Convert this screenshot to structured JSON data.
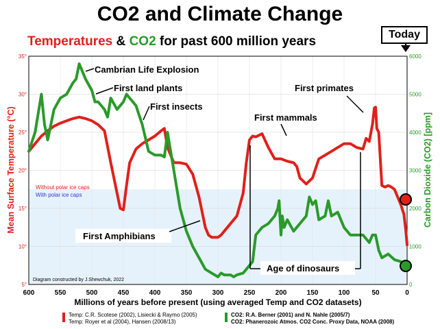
{
  "title": "CO2 and Climate Change",
  "subtitle": {
    "temp": "Temperatures",
    "amp": "&",
    "co2": "CO2",
    "rest": "for past 600 million years"
  },
  "today_label": "Today",
  "colors": {
    "temp": "#e0201b",
    "co2": "#2a9a2a",
    "ice": "#e6f2fb",
    "ice_text": "#3333cc"
  },
  "chart_data": {
    "type": "line",
    "xlabel": "Millions of years before present (using averaged Temp and CO2 datasets)",
    "ylabel_left": "Mean Surface Temperature (°C)",
    "ylabel_right": "Carbon Dioxide (CO2) [ppm]",
    "xlim": [
      600,
      0
    ],
    "ylim_left": [
      5,
      35
    ],
    "ylim_right": [
      0,
      6000
    ],
    "x_ticks": [
      600,
      550,
      500,
      450,
      400,
      350,
      300,
      250,
      200,
      150,
      100,
      50,
      0
    ],
    "y_ticks_left": [
      5,
      10,
      15,
      20,
      25,
      30,
      35
    ],
    "y_ticks_right": [
      0,
      1000,
      2000,
      3000,
      4000,
      5000,
      6000
    ],
    "ice_band_top": 17.5,
    "series": [
      {
        "name": "Temp",
        "axis": "left",
        "color": "#e0201b",
        "x": [
          600,
          590,
          580,
          570,
          560,
          550,
          540,
          530,
          520,
          510,
          500,
          490,
          480,
          470,
          460,
          455,
          450,
          445,
          440,
          430,
          420,
          410,
          400,
          390,
          385,
          380,
          370,
          360,
          350,
          340,
          330,
          320,
          315,
          310,
          300,
          295,
          290,
          280,
          270,
          260,
          255,
          250,
          245,
          240,
          230,
          220,
          210,
          200,
          190,
          180,
          175,
          170,
          160,
          150,
          140,
          130,
          120,
          110,
          100,
          90,
          80,
          70,
          65,
          60,
          55,
          52,
          50,
          48,
          45,
          40,
          35,
          30,
          25,
          20,
          15,
          10,
          5,
          2,
          0
        ],
        "y": [
          22.5,
          23.5,
          24.5,
          25.2,
          25.8,
          26.2,
          26.5,
          26.8,
          27,
          26.8,
          26.5,
          26,
          25.2,
          21,
          17,
          15,
          14.8,
          18,
          21,
          22.8,
          23.5,
          24,
          24.5,
          25.2,
          25.5,
          23,
          21,
          21,
          20.8,
          19.5,
          16.5,
          12.5,
          11.5,
          11.2,
          11.2,
          11.5,
          12,
          13,
          14,
          17,
          21,
          24,
          24.5,
          24.4,
          24.8,
          23,
          21.5,
          21.5,
          21.2,
          21,
          20.5,
          19,
          18.2,
          19,
          21.5,
          22,
          22.5,
          23,
          23.5,
          23.5,
          23,
          22.8,
          24.2,
          23.8,
          26,
          28.2,
          28.3,
          25.5,
          25,
          18,
          17.8,
          18,
          17.8,
          17.5,
          16.5,
          15.5,
          14.2,
          12,
          10.2
        ]
      },
      {
        "name": "CO2",
        "axis": "right",
        "color": "#2a9a2a",
        "x": [
          600,
          590,
          585,
          580,
          575,
          570,
          560,
          550,
          540,
          530,
          525,
          520,
          510,
          500,
          495,
          490,
          485,
          480,
          475,
          470,
          460,
          450,
          445,
          440,
          430,
          420,
          410,
          400,
          390,
          385,
          380,
          370,
          360,
          350,
          340,
          330,
          320,
          310,
          300,
          295,
          290,
          280,
          275,
          270,
          260,
          250,
          245,
          240,
          230,
          220,
          210,
          205,
          203,
          200,
          198,
          195,
          190,
          180,
          170,
          160,
          155,
          150,
          145,
          140,
          130,
          125,
          120,
          110,
          100,
          90,
          80,
          70,
          60,
          55,
          50,
          45,
          40,
          30,
          20,
          10,
          0
        ],
        "y": [
          3500,
          4000,
          4500,
          5000,
          4200,
          3800,
          4600,
          4900,
          5000,
          5300,
          5400,
          5800,
          5400,
          5100,
          4800,
          4800,
          4700,
          4600,
          4400,
          4900,
          4600,
          4800,
          5000,
          4900,
          4700,
          4200,
          3500,
          3400,
          3400,
          3350,
          4000,
          3000,
          2000,
          1400,
          1000,
          700,
          400,
          300,
          200,
          300,
          250,
          250,
          200,
          250,
          300,
          500,
          600,
          1300,
          1500,
          1600,
          1800,
          2000,
          2200,
          1300,
          1800,
          1500,
          1700,
          1400,
          1600,
          1800,
          2300,
          2100,
          2200,
          1700,
          1800,
          2200,
          1800,
          1900,
          1500,
          1300,
          1300,
          1300,
          1100,
          1300,
          1300,
          900,
          700,
          800,
          650,
          600,
          400
        ]
      }
    ],
    "events": [
      {
        "label": "Cambrian Life Explosion"
      },
      {
        "label": "First land plants"
      },
      {
        "label": "First insects"
      },
      {
        "label": "First primates"
      },
      {
        "label": "First mammals"
      },
      {
        "label": "First Amphibians"
      },
      {
        "label": "Age of dinosaurs"
      }
    ],
    "inner_legend": {
      "without": "Without polar ice caps",
      "with": "With polar ice caps"
    },
    "credit": "Diagram constructed by J.Shewchuk, 2022",
    "sources": {
      "temp_1": "Temp: C.R. Scotese (2002), Lisiecki & Raymo (2005)",
      "temp_2": "Temp: Royer et al (2004), Hansen (2008/13)",
      "co2_1": "CO2: R.A. Berner (2001) and N. Nahle (2005/7)",
      "co2_2": "CO2: Phanerozoic Atmos. CO2 Conc. Proxy Data, NOAA (2008)"
    }
  }
}
